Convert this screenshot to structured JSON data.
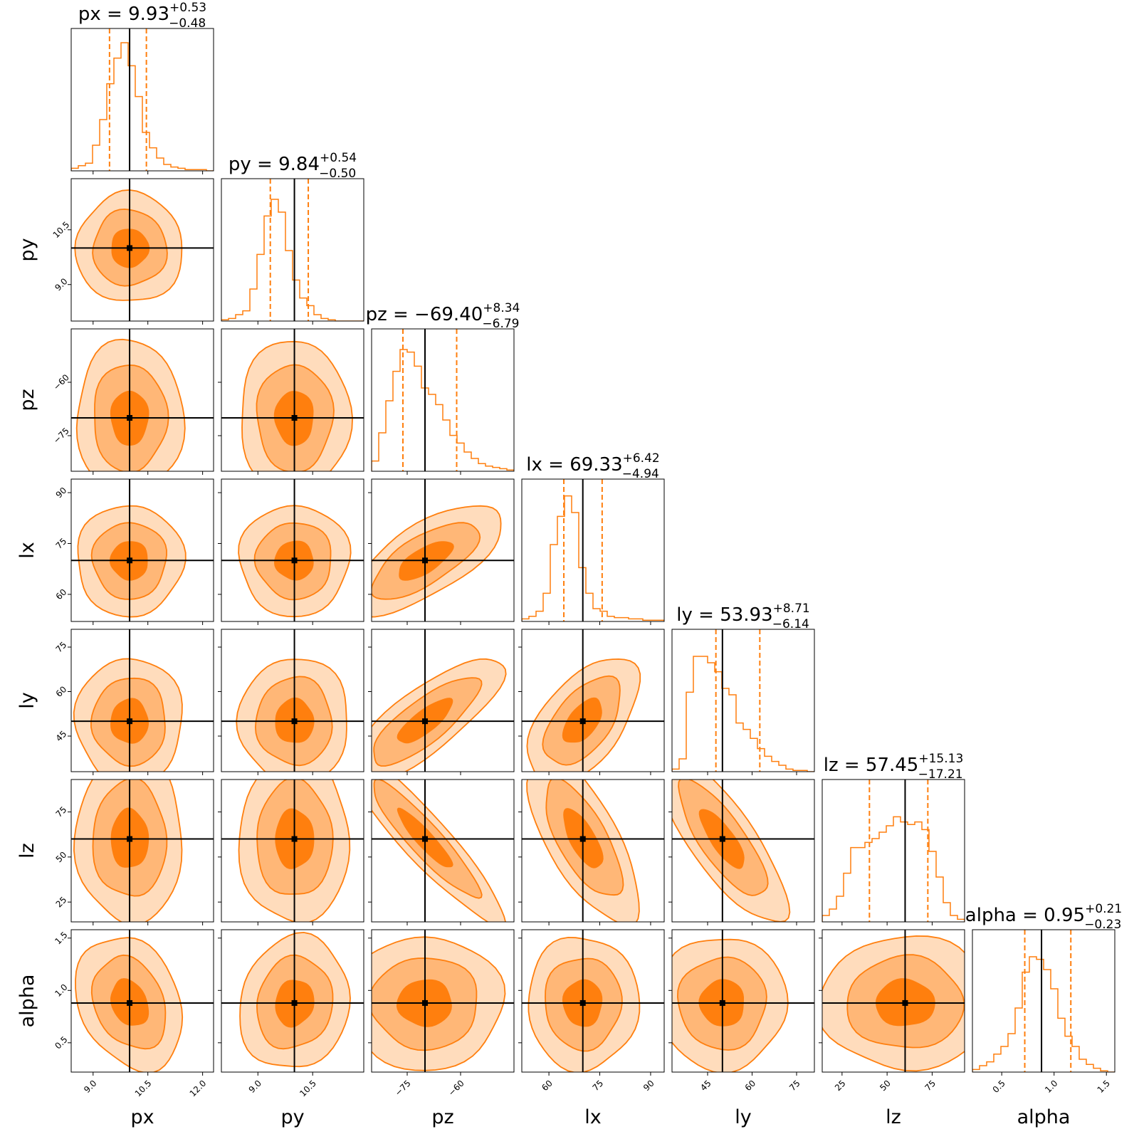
{
  "chart_data": {
    "type": "corner",
    "params": [
      {
        "name": "px",
        "title_prefix": "px = ",
        "median": "9.93",
        "plus": "+0.53",
        "minus": "−0.48",
        "ticks": [
          9.0,
          10.5,
          12.0
        ],
        "tick_labels": [
          "9.0",
          "10.5",
          "12.0"
        ],
        "range": [
          8.4,
          12.3
        ],
        "truth": 10.0,
        "q16": 9.45,
        "q84": 10.46,
        "hist": [
          0.02,
          0.04,
          0.06,
          0.2,
          0.4,
          0.68,
          0.88,
          1.0,
          0.82,
          0.58,
          0.3,
          0.18,
          0.1,
          0.05,
          0.03,
          0.02,
          0.01,
          0.01,
          0.01,
          0.0
        ]
      },
      {
        "name": "py",
        "title_prefix": "py = ",
        "median": "9.84",
        "plus": "+0.54",
        "minus": "−0.50",
        "ticks": [
          9.0,
          10.5
        ],
        "tick_labels": [
          "9.0",
          "10.5"
        ],
        "range": [
          8.0,
          11.9
        ],
        "truth": 10.0,
        "q16": 9.34,
        "q84": 10.38,
        "hist": [
          0.01,
          0.02,
          0.05,
          0.08,
          0.25,
          0.52,
          0.82,
          0.95,
          0.85,
          0.55,
          0.32,
          0.18,
          0.12,
          0.05,
          0.02,
          0.01,
          0.0,
          0.0,
          0.0,
          0.0
        ]
      },
      {
        "name": "pz",
        "title_prefix": "pz = ",
        "median": "−69.40",
        "plus": "+8.34",
        "minus": "−6.79",
        "ticks": [
          -75,
          -60
        ],
        "tick_labels": [
          "−75",
          "−60"
        ],
        "range": [
          -85,
          -45
        ],
        "truth": -70,
        "q16": -76.2,
        "q84": -61.1,
        "hist": [
          0.08,
          0.3,
          0.55,
          0.78,
          0.95,
          0.93,
          0.82,
          0.65,
          0.6,
          0.52,
          0.4,
          0.28,
          0.22,
          0.15,
          0.1,
          0.06,
          0.04,
          0.03,
          0.02,
          0.01
        ]
      },
      {
        "name": "lx",
        "title_prefix": "lx = ",
        "median": "69.33",
        "plus": "+6.42",
        "minus": "−4.94",
        "ticks": [
          60,
          75,
          90
        ],
        "tick_labels": [
          "60",
          "75",
          "90"
        ],
        "range": [
          52,
          94
        ],
        "truth": 70,
        "q16": 64.4,
        "q84": 75.7,
        "hist": [
          0.02,
          0.04,
          0.08,
          0.22,
          0.6,
          0.82,
          0.98,
          0.85,
          0.42,
          0.22,
          0.1,
          0.08,
          0.04,
          0.03,
          0.03,
          0.02,
          0.02,
          0.01,
          0.01,
          0.01
        ]
      },
      {
        "name": "ly",
        "title_prefix": "ly = ",
        "median": "53.93",
        "plus": "+8.71",
        "minus": "−6.14",
        "ticks": [
          45,
          60,
          75
        ],
        "tick_labels": [
          "45",
          "60",
          "75"
        ],
        "range": [
          33,
          81
        ],
        "truth": 50,
        "q16": 47.8,
        "q84": 62.6,
        "hist": [
          0.02,
          0.1,
          0.62,
          0.9,
          0.9,
          0.85,
          0.78,
          0.65,
          0.6,
          0.38,
          0.33,
          0.26,
          0.18,
          0.12,
          0.08,
          0.05,
          0.02,
          0.01,
          0.01,
          0.0
        ]
      },
      {
        "name": "lz",
        "title_prefix": "lz = ",
        "median": "57.45",
        "plus": "+15.13",
        "minus": "−17.21",
        "ticks": [
          25,
          50,
          75
        ],
        "tick_labels": [
          "25",
          "50",
          "75"
        ],
        "range": [
          14,
          93
        ],
        "truth": 60,
        "q16": 40.2,
        "q84": 72.6,
        "hist": [
          0.05,
          0.1,
          0.2,
          0.38,
          0.58,
          0.58,
          0.62,
          0.65,
          0.7,
          0.75,
          0.82,
          0.78,
          0.76,
          0.78,
          0.72,
          0.55,
          0.35,
          0.15,
          0.05,
          0.02
        ]
      },
      {
        "name": "alpha",
        "title_prefix": "alpha = ",
        "median": "0.95",
        "plus": "+0.21",
        "minus": "−0.23",
        "ticks": [
          0.5,
          1.0,
          1.5
        ],
        "tick_labels": [
          "0.5",
          "1.0",
          "1.5"
        ],
        "range": [
          0.22,
          1.58
        ],
        "truth": 0.88,
        "q16": 0.72,
        "q84": 1.16,
        "hist": [
          0.02,
          0.05,
          0.08,
          0.14,
          0.2,
          0.3,
          0.5,
          0.78,
          0.9,
          0.88,
          0.8,
          0.65,
          0.42,
          0.28,
          0.2,
          0.1,
          0.06,
          0.03,
          0.01,
          0.0
        ]
      }
    ],
    "correlations": {
      "pz-lx": 0.7,
      "pz-ly": 0.8,
      "pz-lz": -0.92,
      "lx-ly": 0.55,
      "lx-lz": -0.7,
      "ly-lz": -0.8,
      "px-alpha": -0.25,
      "py-alpha": 0.1
    },
    "contour_levels": [
      0.39,
      0.86,
      0.99
    ],
    "colors": {
      "contour": "#ff7f0e",
      "fill_outer": "#ffdcbc",
      "fill_mid": "#ffb777",
      "fill_inner": "#ff7f0e",
      "truth": "#000000"
    }
  }
}
